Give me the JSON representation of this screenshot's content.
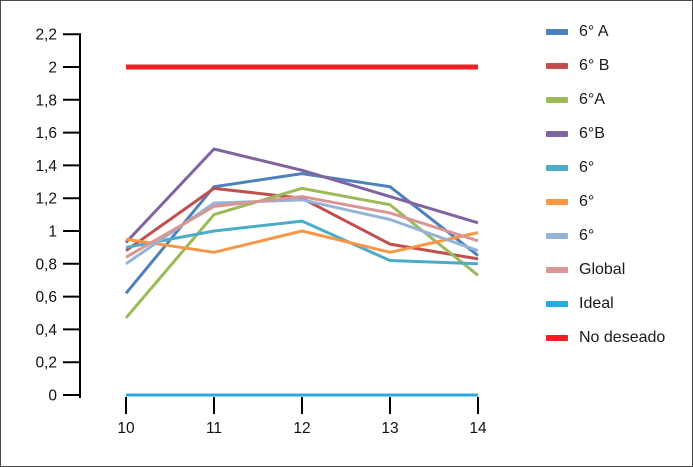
{
  "chart_data": {
    "type": "line",
    "title": "",
    "xlabel": "",
    "ylabel": "",
    "grid": false,
    "legend_position": "right",
    "x": [
      10,
      11,
      12,
      13,
      14
    ],
    "x_tick_labels": [
      "10",
      "11",
      "12",
      "13",
      "14"
    ],
    "xlim": [
      10,
      14
    ],
    "ylim": [
      0,
      2.2
    ],
    "y_ticks": [
      {
        "v": 0,
        "label": "0"
      },
      {
        "v": 0.2,
        "label": "0,2"
      },
      {
        "v": 0.4,
        "label": "0,4"
      },
      {
        "v": 0.6,
        "label": "0,6"
      },
      {
        "v": 0.8,
        "label": "0,8"
      },
      {
        "v": 1,
        "label": "1"
      },
      {
        "v": 1.2,
        "label": "1,2"
      },
      {
        "v": 1.4,
        "label": "1,4"
      },
      {
        "v": 1.6,
        "label": "1,6"
      },
      {
        "v": 1.8,
        "label": "1,8"
      },
      {
        "v": 2,
        "label": "2"
      },
      {
        "v": 2.2,
        "label": "2,2"
      }
    ],
    "series": [
      {
        "name": "6° A",
        "color": "#4F81BD",
        "values": [
          0.62,
          1.27,
          1.35,
          1.27,
          0.85
        ]
      },
      {
        "name": "6° B",
        "color": "#C0504D",
        "values": [
          0.88,
          1.26,
          1.2,
          0.92,
          0.83
        ]
      },
      {
        "name": "6°A",
        "color": "#9BBB59",
        "values": [
          0.47,
          1.1,
          1.26,
          1.16,
          0.73
        ]
      },
      {
        "name": "6°B",
        "color": "#8064A2",
        "values": [
          0.93,
          1.5,
          1.37,
          1.21,
          1.05
        ]
      },
      {
        "name": "6°",
        "color": "#4BACC6",
        "values": [
          0.9,
          1.0,
          1.06,
          0.82,
          0.8
        ]
      },
      {
        "name": "6°",
        "color": "#F79646",
        "values": [
          0.95,
          0.87,
          1.0,
          0.87,
          0.99
        ]
      },
      {
        "name": "6°",
        "color": "#95B3D7",
        "values": [
          0.8,
          1.17,
          1.19,
          1.07,
          0.88
        ]
      },
      {
        "name": "Global",
        "color": "#D99694",
        "values": [
          0.84,
          1.15,
          1.21,
          1.11,
          0.94
        ]
      },
      {
        "name": "Ideal",
        "color": "#29A9E1",
        "values": [
          0,
          0,
          0,
          0,
          0
        ]
      },
      {
        "name": "No deseado",
        "color": "#ED2024",
        "values": [
          2,
          2,
          2,
          2,
          2
        ]
      }
    ],
    "axis_color": "#000000"
  }
}
